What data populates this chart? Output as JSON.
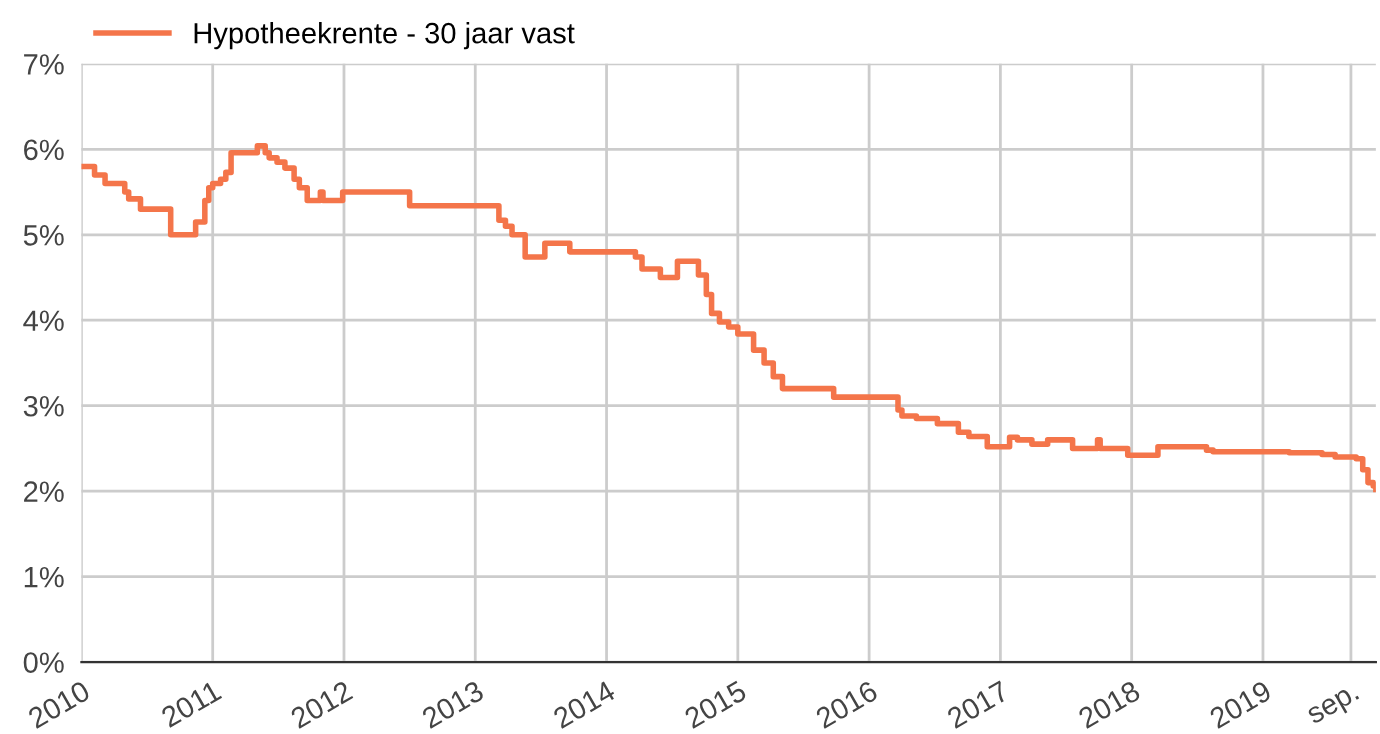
{
  "chart_data": {
    "type": "step",
    "x": [
      2010.01,
      2010.1,
      2010.18,
      2010.33,
      2010.36,
      2010.45,
      2010.68,
      2010.87,
      2010.94,
      2010.97,
      2011.0,
      2011.06,
      2011.1,
      2011.14,
      2011.34,
      2011.4,
      2011.43,
      2011.49,
      2011.55,
      2011.62,
      2011.66,
      2011.72,
      2011.82,
      2011.84,
      2011.99,
      2012.5,
      2013.18,
      2013.23,
      2013.28,
      2013.38,
      2013.53,
      2013.72,
      2014.22,
      2014.27,
      2014.41,
      2014.54,
      2014.7,
      2014.76,
      2014.8,
      2014.86,
      2014.93,
      2015.0,
      2015.12,
      2015.2,
      2015.27,
      2015.34,
      2015.73,
      2016.22,
      2016.25,
      2016.36,
      2016.52,
      2016.68,
      2016.76,
      2016.9,
      2017.07,
      2017.13,
      2017.24,
      2017.36,
      2017.55,
      2017.74,
      2017.76,
      2017.97,
      2018.2,
      2018.57,
      2018.62,
      2019.2,
      2019.45,
      2019.55,
      2019.71,
      2019.76,
      2019.8,
      2019.84,
      2019.86
    ],
    "series": [
      {
        "name": "Hypotheekrente - 30 jaar vast",
        "color": "#f4754a",
        "values": [
          5.8,
          5.7,
          5.6,
          5.5,
          5.42,
          5.3,
          5.0,
          5.15,
          5.4,
          5.55,
          5.6,
          5.65,
          5.73,
          5.96,
          6.04,
          5.96,
          5.9,
          5.85,
          5.78,
          5.65,
          5.55,
          5.4,
          5.5,
          5.4,
          5.5,
          5.34,
          5.17,
          5.1,
          5.0,
          4.74,
          4.9,
          4.8,
          4.74,
          4.6,
          4.5,
          4.69,
          4.53,
          4.3,
          4.08,
          3.98,
          3.92,
          3.84,
          3.65,
          3.5,
          3.34,
          3.2,
          3.1,
          2.95,
          2.88,
          2.85,
          2.79,
          2.69,
          2.64,
          2.52,
          2.63,
          2.6,
          2.55,
          2.6,
          2.5,
          2.6,
          2.5,
          2.42,
          2.52,
          2.48,
          2.46,
          2.45,
          2.43,
          2.4,
          2.38,
          2.25,
          2.1,
          2.06,
          2.02
        ]
      }
    ],
    "xlim": [
      2010,
      2019.86
    ],
    "xticks": [
      2010,
      2011,
      2012,
      2013,
      2014,
      2015,
      2016,
      2017,
      2018,
      2019,
      {
        "value": 2019.67,
        "label": "sep."
      }
    ],
    "ylim": [
      0,
      7
    ],
    "yticks": [
      {
        "value": 0,
        "label": "0%"
      },
      {
        "value": 1,
        "label": "1%"
      },
      {
        "value": 2,
        "label": "2%"
      },
      {
        "value": 3,
        "label": "3%"
      },
      {
        "value": 4,
        "label": "4%"
      },
      {
        "value": 5,
        "label": "5%"
      },
      {
        "value": 6,
        "label": "6%"
      },
      {
        "value": 7,
        "label": "7%"
      }
    ],
    "grid": true,
    "legend": "top left",
    "marker": "none",
    "line_style": "solid"
  }
}
